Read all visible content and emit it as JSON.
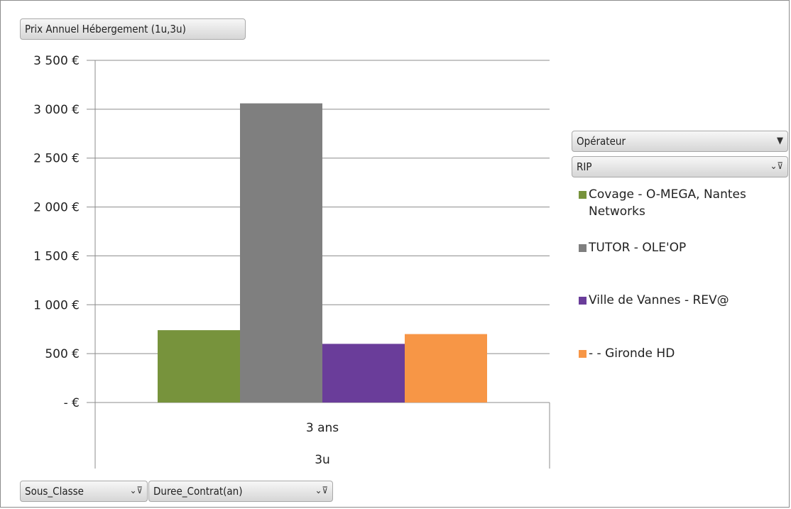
{
  "report_filter": {
    "label": "Prix Annuel Hébergement (1u,3u)"
  },
  "legend_field": {
    "label": "Opérateur",
    "sub_label": "RIP"
  },
  "axis_fields": [
    {
      "label": "Sous_Classe"
    },
    {
      "label": "Duree_Contrat(an)"
    }
  ],
  "colors": {
    "gridline": "#8c8c8c",
    "series": [
      "#77933c",
      "#7f7f7f",
      "#6a3d9a",
      "#f79646"
    ]
  },
  "chart_data": {
    "type": "bar",
    "categories": [
      "3 ans"
    ],
    "outer_category": "3u",
    "series": [
      {
        "name": "Covage - O-MEGA, Nantes Networks",
        "values": [
          740
        ]
      },
      {
        "name": "TUTOR - OLE'OP",
        "values": [
          3060
        ]
      },
      {
        "name": "Ville de Vannes - REV@",
        "values": [
          600
        ]
      },
      {
        "name": "- - Gironde HD",
        "values": [
          700
        ]
      }
    ],
    "y_ticks": [
      "- €",
      "500 €",
      "1 000 €",
      "1 500 €",
      "2 000 €",
      "2 500 €",
      "3 000 €",
      "3 500 €"
    ],
    "ylim": [
      0,
      3500
    ],
    "grid": true,
    "legend_position": "right"
  }
}
